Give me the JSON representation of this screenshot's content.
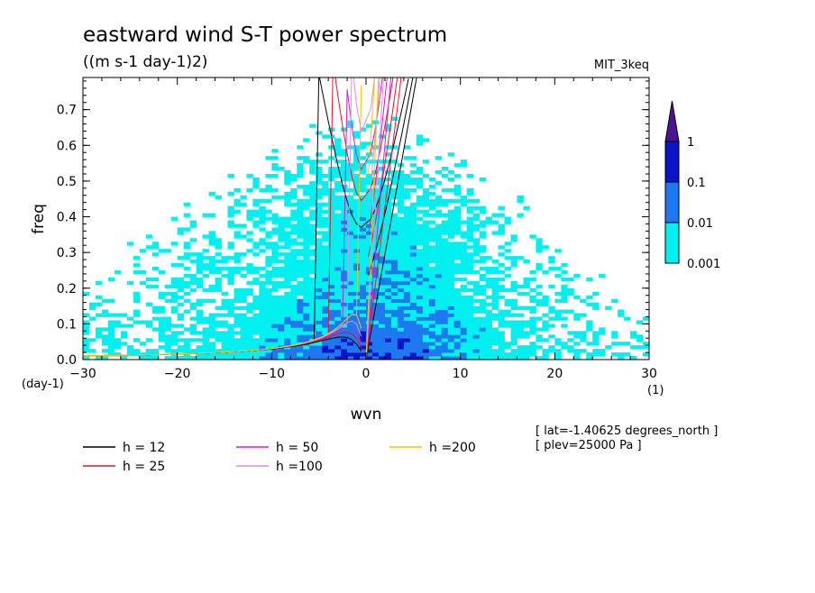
{
  "chart_data": {
    "type": "heatmap",
    "title": "eastward wind S-T power spectrum",
    "subtitle": "((m s-1 day-1)2)",
    "dataset": "MIT_3keq",
    "xlabel": "wvn",
    "ylabel": "freq",
    "x_unit": "(1)",
    "y_unit": "(day-1)",
    "xlim": [
      -30,
      30
    ],
    "ylim": [
      0,
      0.79
    ],
    "xticks": [
      -30,
      -20,
      -10,
      0,
      10,
      20,
      30
    ],
    "yticks": [
      0.0,
      0.1,
      0.2,
      0.3,
      0.4,
      0.5,
      0.6,
      0.7
    ],
    "ytick_labels": [
      "0.0",
      "0.1",
      "0.2",
      "0.3",
      "0.4",
      "0.5",
      "0.6",
      "0.7"
    ],
    "colorbar": {
      "levels": [
        "0.001",
        "0.01",
        "0.1",
        "1"
      ],
      "colors": [
        "#00f0f0",
        "#1e78f0",
        "#0a14c8",
        "#4b1496"
      ]
    },
    "dispersion_curves": [
      {
        "name": "h = 12",
        "h": 12,
        "color": "#000000"
      },
      {
        "name": "h = 25",
        "h": 25,
        "color": "#e8142a"
      },
      {
        "name": "h = 50",
        "h": 50,
        "color": "#d21ecf"
      },
      {
        "name": "h =100",
        "h": 100,
        "color": "#e08ce6"
      },
      {
        "name": "h =200",
        "h": 200,
        "color": "#f2c400"
      }
    ],
    "info": [
      "[ lat=-1.40625 degrees_north ]",
      "[ plev=25000 Pa ]"
    ]
  }
}
